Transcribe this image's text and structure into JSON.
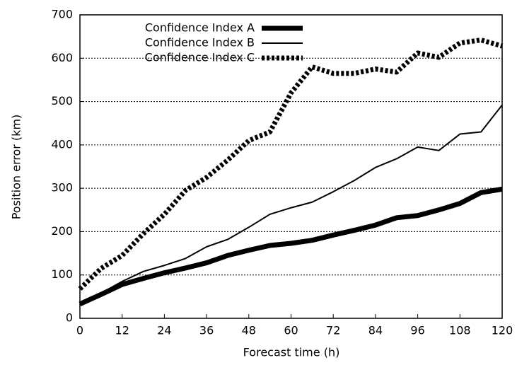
{
  "chart_data": {
    "type": "line",
    "xlabel": "Forecast time (h)",
    "ylabel": "Position error (km)",
    "x": [
      0,
      6,
      12,
      18,
      24,
      30,
      36,
      42,
      48,
      54,
      60,
      66,
      72,
      78,
      84,
      90,
      96,
      102,
      108,
      114,
      120
    ],
    "series": [
      {
        "name": "Confidence Index A",
        "color": "#000000",
        "values": [
          33,
          55,
          78,
          92,
          105,
          116,
          128,
          145,
          157,
          168,
          173,
          180,
          192,
          203,
          215,
          232,
          237,
          250,
          265,
          290,
          298
        ]
      },
      {
        "name": "Confidence Index B",
        "color": "#000000",
        "values": [
          35,
          58,
          85,
          108,
          122,
          138,
          165,
          182,
          210,
          240,
          255,
          268,
          292,
          318,
          348,
          368,
          395,
          387,
          425,
          430,
          492
        ]
      },
      {
        "name": "Confidence Index C",
        "color": "#000000",
        "values": [
          68,
          115,
          145,
          195,
          240,
          295,
          325,
          365,
          410,
          430,
          520,
          580,
          565,
          565,
          575,
          568,
          612,
          602,
          635,
          642,
          628
        ]
      }
    ],
    "xlim": [
      0,
      120
    ],
    "xticks": [
      0,
      12,
      24,
      36,
      48,
      60,
      72,
      84,
      96,
      108,
      120
    ],
    "ylim": [
      0,
      700
    ],
    "yticks": [
      0,
      100,
      200,
      300,
      400,
      500,
      600,
      700
    ],
    "grid": true,
    "legend": "upper left"
  }
}
